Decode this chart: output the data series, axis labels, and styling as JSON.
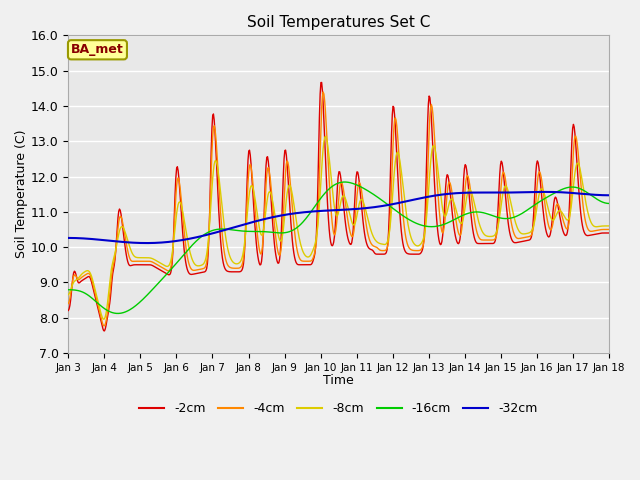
{
  "title": "Soil Temperatures Set C",
  "xlabel": "Time",
  "ylabel": "Soil Temperature (C)",
  "ylim": [
    7.0,
    16.0
  ],
  "yticks": [
    7.0,
    8.0,
    9.0,
    10.0,
    11.0,
    12.0,
    13.0,
    14.0,
    15.0,
    16.0
  ],
  "xlim": [
    0,
    15
  ],
  "xtick_labels": [
    "Jan 3",
    "Jan 4",
    "Jan 5",
    "Jan 6",
    "Jan 7",
    "Jan 8",
    "Jan 9",
    "Jan 10",
    "Jan 11",
    "Jan 12",
    "Jan 13",
    "Jan 14",
    "Jan 15",
    "Jan 16",
    "Jan 17",
    "Jan 18"
  ],
  "xtick_positions": [
    0,
    1,
    2,
    3,
    4,
    5,
    6,
    7,
    8,
    9,
    10,
    11,
    12,
    13,
    14,
    15
  ],
  "series": {
    "-2cm": {
      "color": "#dd0000",
      "lw": 1.0
    },
    "-4cm": {
      "color": "#ff8800",
      "lw": 1.0
    },
    "-8cm": {
      "color": "#ddcc00",
      "lw": 1.0
    },
    "-16cm": {
      "color": "#00cc00",
      "lw": 1.0
    },
    "-32cm": {
      "color": "#0000cc",
      "lw": 1.5
    }
  },
  "legend_label": "BA_met",
  "legend_box_color": "#ffff99",
  "legend_box_edge": "#999900",
  "background_color": "#e8e8e8",
  "grid_color": "#ffffff",
  "figsize": [
    6.4,
    4.8
  ],
  "dpi": 100
}
